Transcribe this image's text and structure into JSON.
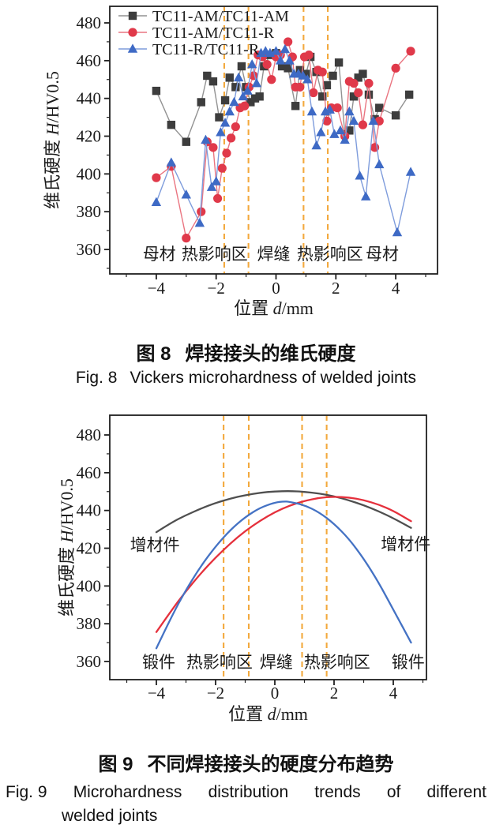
{
  "figure8_caption": {
    "label_cn": "图 8",
    "title_cn": "焊接接头的维氏硬度",
    "label_en": "Fig. 8",
    "title_en": "Vickers microhardness of welded joints"
  },
  "figure9_caption": {
    "label_cn": "图 9",
    "title_cn": "不同焊接接头的硬度分布趋势",
    "line1_en": "Fig. 9 Microhardness distribution trends of different",
    "line2_en": "welded joints"
  },
  "chart_data": [
    {
      "id": "fig8",
      "type": "scatter-line",
      "title": "",
      "xlabel": {
        "pre": "位置 ",
        "it": "d",
        "post": "/mm"
      },
      "ylabel": {
        "pre": "维氏硬度 ",
        "it": "H",
        "post": "/HV0.5"
      },
      "xlim": [
        -5.55,
        5.4
      ],
      "ylim": [
        347,
        489
      ],
      "xticks": [
        -4,
        -2,
        0,
        2,
        4
      ],
      "xticks_minor": [
        -5,
        -3,
        -1,
        1,
        3,
        5
      ],
      "yticks": [
        360,
        380,
        400,
        420,
        440,
        460,
        480
      ],
      "yticks_minor": [
        350,
        370,
        390,
        410,
        430,
        450,
        470
      ],
      "grid": false,
      "legend_position": "upper-left-inside",
      "dashed_guides": {
        "x": [
          -1.73,
          -0.92,
          0.92,
          1.73
        ],
        "color": "#F3A93D"
      },
      "zone_labels": {
        "y": 360,
        "items": [
          {
            "text": "母材",
            "x": -3.9
          },
          {
            "text": "热影响区",
            "x": -2.05
          },
          {
            "text": "焊缝",
            "x": -0.08
          },
          {
            "text": "热影响区",
            "x": 1.8
          },
          {
            "text": "母材",
            "x": 3.55
          }
        ]
      },
      "series": [
        {
          "name": "TC11-AM/TC11-AM",
          "marker": "square",
          "color": "#3D3D3D",
          "line_color": "#929292",
          "points": [
            [
              -4,
              444
            ],
            [
              -3.5,
              426
            ],
            [
              -3,
              417
            ],
            [
              -2.5,
              438
            ],
            [
              -2.3,
              452
            ],
            [
              -2.1,
              449
            ],
            [
              -1.9,
              430
            ],
            [
              -1.7,
              439
            ],
            [
              -1.55,
              451
            ],
            [
              -1.35,
              446
            ],
            [
              -1.15,
              457
            ],
            [
              -1,
              446
            ],
            [
              -0.85,
              438
            ],
            [
              -0.7,
              440
            ],
            [
              -0.55,
              441
            ],
            [
              -0.4,
              457
            ],
            [
              -0.2,
              463
            ],
            [
              0,
              464
            ],
            [
              0.2,
              457
            ],
            [
              0.4,
              456
            ],
            [
              0.65,
              436
            ],
            [
              0.8,
              455
            ],
            [
              1,
              453
            ],
            [
              1.15,
              462
            ],
            [
              1.35,
              454
            ],
            [
              1.55,
              441
            ],
            [
              1.7,
              447
            ],
            [
              1.9,
              452
            ],
            [
              2.1,
              459
            ],
            [
              2.3,
              421
            ],
            [
              2.45,
              423
            ],
            [
              2.6,
              441
            ],
            [
              2.75,
              451
            ],
            [
              2.9,
              453
            ],
            [
              3.1,
              442
            ],
            [
              3.3,
              429
            ],
            [
              3.45,
              435
            ],
            [
              4,
              431
            ],
            [
              4.45,
              442
            ]
          ]
        },
        {
          "name": "TC11-AM/TC11-R",
          "marker": "circle",
          "color": "#E0394A",
          "line_color": "#EA7581",
          "points": [
            [
              -4,
              398
            ],
            [
              -3.5,
              404
            ],
            [
              -3,
              366
            ],
            [
              -2.5,
              380
            ],
            [
              -2.3,
              417
            ],
            [
              -2.1,
              414
            ],
            [
              -1.95,
              387
            ],
            [
              -1.8,
              403
            ],
            [
              -1.65,
              411
            ],
            [
              -1.5,
              419
            ],
            [
              -1.35,
              425
            ],
            [
              -1.2,
              435
            ],
            [
              -1.05,
              436
            ],
            [
              -0.9,
              446
            ],
            [
              -0.75,
              452
            ],
            [
              -0.6,
              463
            ],
            [
              -0.45,
              462
            ],
            [
              -0.3,
              458
            ],
            [
              -0.15,
              450
            ],
            [
              0,
              462
            ],
            [
              0.15,
              463
            ],
            [
              0.4,
              470
            ],
            [
              0.55,
              462
            ],
            [
              0.65,
              446
            ],
            [
              0.8,
              446
            ],
            [
              0.95,
              462
            ],
            [
              1.1,
              463
            ],
            [
              1.25,
              443
            ],
            [
              1.4,
              455
            ],
            [
              1.55,
              454
            ],
            [
              1.7,
              428
            ],
            [
              1.85,
              435
            ],
            [
              2.05,
              435
            ],
            [
              2.3,
              420
            ],
            [
              2.45,
              449
            ],
            [
              2.6,
              448
            ],
            [
              2.75,
              443
            ],
            [
              2.9,
              426
            ],
            [
              3.1,
              448
            ],
            [
              3.3,
              414
            ],
            [
              3.45,
              428
            ],
            [
              4,
              456
            ],
            [
              4.5,
              465
            ]
          ]
        },
        {
          "name": "TC11-R/TC11-R",
          "marker": "triangle",
          "color": "#3E6AC5",
          "line_color": "#7E9CDC",
          "points": [
            [
              -4,
              385
            ],
            [
              -3.5,
              406
            ],
            [
              -3,
              389
            ],
            [
              -2.55,
              374
            ],
            [
              -2.35,
              418
            ],
            [
              -2.15,
              393
            ],
            [
              -2,
              396
            ],
            [
              -1.85,
              422
            ],
            [
              -1.7,
              427
            ],
            [
              -1.55,
              433
            ],
            [
              -1.4,
              438
            ],
            [
              -1.25,
              451
            ],
            [
              -1.1,
              441
            ],
            [
              -0.95,
              444
            ],
            [
              -0.8,
              458
            ],
            [
              -0.65,
              448
            ],
            [
              -0.5,
              464
            ],
            [
              -0.35,
              465
            ],
            [
              -0.2,
              464
            ],
            [
              0,
              465
            ],
            [
              0.15,
              460
            ],
            [
              0.3,
              466
            ],
            [
              0.45,
              460
            ],
            [
              0.6,
              453
            ],
            [
              0.75,
              453
            ],
            [
              0.9,
              452
            ],
            [
              1.05,
              450
            ],
            [
              1.2,
              433
            ],
            [
              1.35,
              415
            ],
            [
              1.5,
              422
            ],
            [
              1.65,
              433
            ],
            [
              1.8,
              434
            ],
            [
              1.95,
              421
            ],
            [
              2.15,
              423
            ],
            [
              2.3,
              418
            ],
            [
              2.45,
              433
            ],
            [
              2.6,
              428
            ],
            [
              2.8,
              399
            ],
            [
              3,
              388
            ],
            [
              3.25,
              428
            ],
            [
              3.45,
              405
            ],
            [
              4.05,
              369
            ],
            [
              4.5,
              401
            ]
          ]
        }
      ]
    },
    {
      "id": "fig9",
      "type": "line",
      "title": "",
      "xlabel": {
        "pre": "位置 ",
        "it": "d",
        "post": "/mm"
      },
      "ylabel": {
        "pre": "维氏硬度 ",
        "it": "H",
        "post": "/HV0.5"
      },
      "xlim": [
        -5.57,
        5.1
      ],
      "ylim": [
        350,
        490
      ],
      "xticks": [
        -4,
        -2,
        0,
        2,
        4
      ],
      "xticks_minor": [
        -5,
        -3,
        -1,
        1,
        3,
        5
      ],
      "yticks": [
        360,
        380,
        400,
        420,
        440,
        460,
        480
      ],
      "yticks_minor": [
        370,
        390,
        410,
        430,
        450,
        470
      ],
      "grid": false,
      "dashed_guides": {
        "x": [
          -1.73,
          -0.88,
          0.92,
          1.75
        ],
        "color": "#F3A93D"
      },
      "zone_labels": {
        "y": 360,
        "items": [
          {
            "text": "锻件",
            "x": -3.92
          },
          {
            "text": "热影响区",
            "x": -1.87
          },
          {
            "text": "焊缝",
            "x": 0.05
          },
          {
            "text": "热影响区",
            "x": 2.1
          },
          {
            "text": "锻件",
            "x": 4.5
          }
        ]
      },
      "annotations": [
        {
          "text": "增材件",
          "x": -4.05,
          "y": 422
        },
        {
          "text": "增材件",
          "x": 4.42,
          "y": 422.5
        }
      ],
      "series": [
        {
          "name": "black-curve",
          "color": "#4F4F4F",
          "points": [
            [
              -4,
              428.5
            ],
            [
              -3.5,
              433.5
            ],
            [
              -3,
              437.5
            ],
            [
              -2.5,
              441
            ],
            [
              -2,
              444
            ],
            [
              -1.5,
              446.3
            ],
            [
              -1,
              448.1
            ],
            [
              -0.5,
              449.4
            ],
            [
              0,
              450.1
            ],
            [
              0.5,
              450.3
            ],
            [
              1,
              449.9
            ],
            [
              1.5,
              449
            ],
            [
              2,
              447.5
            ],
            [
              2.5,
              445.4
            ],
            [
              3,
              442.8
            ],
            [
              3.5,
              439.6
            ],
            [
              4,
              435.9
            ],
            [
              4.6,
              430.8
            ]
          ]
        },
        {
          "name": "red-curve",
          "color": "#E5303C",
          "points": [
            [
              -4,
              375.6
            ],
            [
              -3.5,
              386.9
            ],
            [
              -3,
              397.3
            ],
            [
              -2.5,
              406.7
            ],
            [
              -2,
              415.1
            ],
            [
              -1.5,
              422.6
            ],
            [
              -1,
              429.1
            ],
            [
              -0.5,
              434.6
            ],
            [
              0,
              439.1
            ],
            [
              0.5,
              442.6
            ],
            [
              1,
              445.1
            ],
            [
              1.5,
              446.7
            ],
            [
              2,
              447.3
            ],
            [
              2.5,
              446.9
            ],
            [
              3,
              445.5
            ],
            [
              3.5,
              443.2
            ],
            [
              4,
              439.8
            ],
            [
              4.6,
              434.3
            ]
          ]
        },
        {
          "name": "blue-curve",
          "color": "#4472C4",
          "points": [
            [
              -4,
              367
            ],
            [
              -3.5,
              383.5
            ],
            [
              -3,
              398
            ],
            [
              -2.5,
              410.5
            ],
            [
              -2,
              421
            ],
            [
              -1.5,
              429.8
            ],
            [
              -1,
              436.5
            ],
            [
              -0.5,
              441.5
            ],
            [
              0,
              444.2
            ],
            [
              0.3,
              444.8
            ],
            [
              0.5,
              444.6
            ],
            [
              1,
              442.8
            ],
            [
              1.5,
              439
            ],
            [
              2,
              433
            ],
            [
              2.5,
              425
            ],
            [
              3,
              414.5
            ],
            [
              3.5,
              402
            ],
            [
              4,
              387.5
            ],
            [
              4.6,
              370
            ]
          ]
        }
      ]
    }
  ]
}
